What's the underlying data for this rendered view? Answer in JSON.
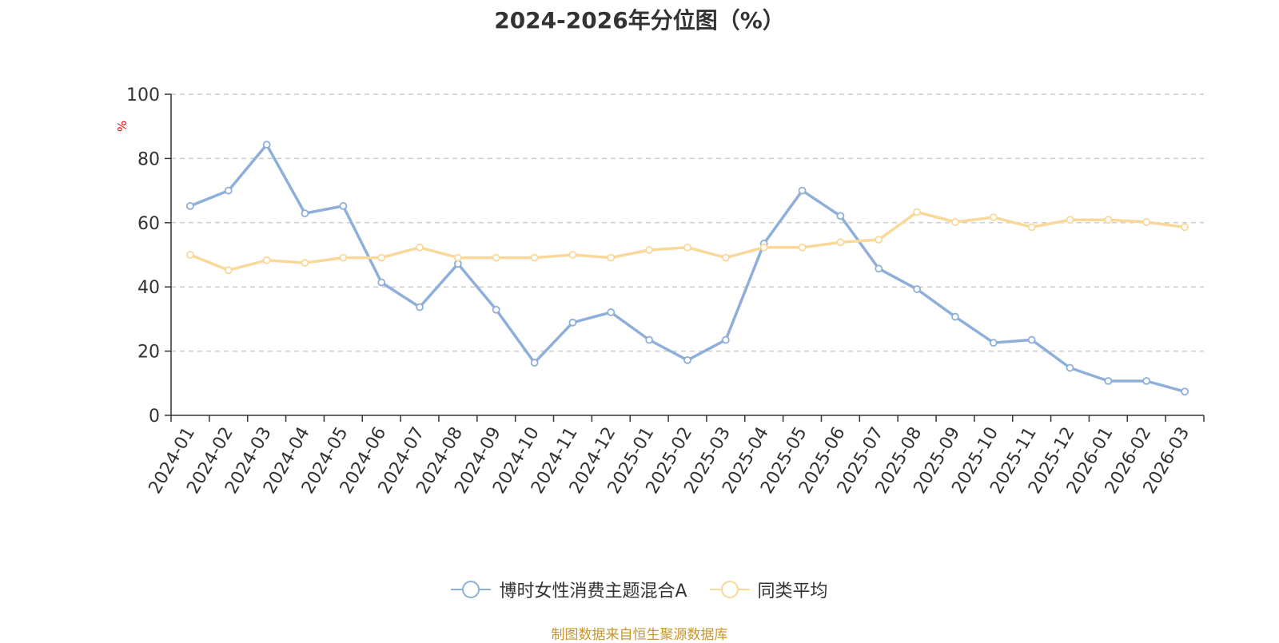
{
  "chart_data": {
    "type": "line",
    "title": "2024-2026年分位图（%）",
    "ylabel": "%",
    "xlabel": "",
    "ylim": [
      0,
      100
    ],
    "yticks": [
      0,
      20,
      40,
      60,
      80,
      100
    ],
    "grid": true,
    "legend_position": "bottom",
    "categories": [
      "2024-01",
      "2024-02",
      "2024-03",
      "2024-04",
      "2024-05",
      "2024-06",
      "2024-07",
      "2024-08",
      "2024-09",
      "2024-10",
      "2024-11",
      "2024-12",
      "2025-01",
      "2025-02",
      "2025-03",
      "2025-04",
      "2025-05",
      "2025-06",
      "2025-07",
      "2025-08",
      "2025-09",
      "2025-10",
      "2025-11",
      "2025-12",
      "2026-01",
      "2026-02",
      "2026-03"
    ],
    "series": [
      {
        "name": "博时女性消费主题混合A",
        "color": "#8EAFD9",
        "values": [
          65.2,
          70.0,
          84.3,
          62.9,
          65.2,
          41.4,
          33.7,
          47.2,
          32.9,
          16.4,
          28.9,
          32.1,
          23.5,
          17.2,
          23.5,
          53.5,
          70.0,
          62.1,
          45.7,
          39.3,
          30.7,
          22.6,
          23.5,
          14.8,
          10.7,
          10.7,
          7.4
        ]
      },
      {
        "name": "同类平均",
        "color": "#FAD89A",
        "values": [
          50.0,
          45.2,
          48.3,
          47.5,
          49.1,
          49.1,
          52.3,
          49.1,
          49.1,
          49.1,
          50.0,
          49.1,
          51.5,
          52.3,
          49.1,
          52.3,
          52.3,
          53.9,
          54.7,
          63.3,
          60.2,
          61.7,
          58.6,
          60.9,
          60.9,
          60.2,
          58.6
        ]
      }
    ]
  },
  "source_note": "制图数据来自恒生聚源数据库",
  "colors": {
    "title": "#333333",
    "axis": "#333333",
    "grid": "#cccccc",
    "ylabel": "#ff0000",
    "source_note": "#c8962e"
  }
}
